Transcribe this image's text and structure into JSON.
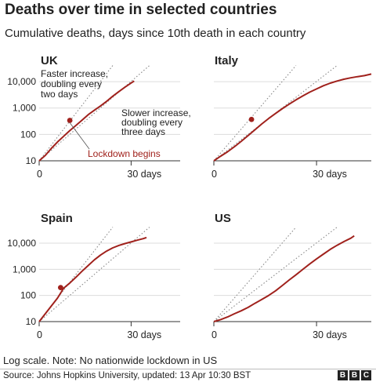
{
  "title": "Deaths over time in selected countries",
  "subtitle": "Cumulative deaths, days since 10th death in each country",
  "note": "Log scale. Note: No nationwide lockdown in US",
  "source": "Source: Johns Hopkins University, updated:  13 Apr 10:30 BST",
  "brand": [
    "B",
    "B",
    "C"
  ],
  "colors": {
    "line": "#a0211c",
    "guide": "#888888",
    "text": "#222222"
  },
  "chart_data": [
    {
      "type": "line",
      "title": "UK",
      "xlabel": "days",
      "ylabel": "",
      "log_scale_y": true,
      "xlim": [
        0,
        46
      ],
      "ylim": [
        10,
        20000
      ],
      "x_ticks": [
        0,
        30
      ],
      "x_tick_labels": [
        "0",
        "30 days"
      ],
      "y_ticks": [
        10,
        100,
        1000,
        10000
      ],
      "y_tick_labels": [
        "10",
        "100",
        "1,000",
        "10,000"
      ],
      "series": [
        {
          "x": [
            0,
            2,
            4,
            6,
            8,
            10,
            12,
            14,
            16,
            18,
            20,
            22,
            24,
            26,
            28,
            30,
            31
          ],
          "y": [
            10,
            16,
            30,
            52,
            85,
            140,
            220,
            350,
            560,
            820,
            1200,
            1800,
            2800,
            4200,
            6200,
            8900,
            10600
          ]
        }
      ],
      "guides": [
        {
          "x": [
            0,
            24
          ],
          "y": [
            10,
            40960
          ]
        },
        {
          "x": [
            0,
            36
          ],
          "y": [
            10,
            40960
          ]
        }
      ],
      "marker": {
        "x": 10,
        "y": 340
      },
      "annotations": [
        {
          "text": [
            "Faster increase,",
            "doubling every",
            "two days"
          ]
        },
        {
          "text": [
            "Slower increase,",
            "doubling every",
            "three days"
          ]
        },
        {
          "text": [
            "Lockdown begins"
          ]
        }
      ]
    },
    {
      "type": "line",
      "title": "Italy",
      "xlabel": "days",
      "ylabel": "",
      "log_scale_y": true,
      "xlim": [
        0,
        46
      ],
      "ylim": [
        10,
        20000
      ],
      "x_ticks": [
        0,
        30
      ],
      "x_tick_labels": [
        "0",
        "30 days"
      ],
      "y_ticks": [],
      "y_tick_labels": [],
      "series": [
        {
          "x": [
            0,
            2,
            4,
            6,
            8,
            10,
            12,
            14,
            16,
            18,
            20,
            22,
            24,
            26,
            28,
            30,
            32,
            34,
            36,
            38,
            40,
            42,
            44,
            46
          ],
          "y": [
            10,
            15,
            22,
            34,
            55,
            90,
            150,
            250,
            400,
            620,
            950,
            1400,
            2050,
            2900,
            4000,
            5300,
            7000,
            8800,
            10600,
            12400,
            14000,
            15500,
            17000,
            19500
          ]
        }
      ],
      "guides": [
        {
          "x": [
            0,
            24
          ],
          "y": [
            10,
            40960
          ]
        },
        {
          "x": [
            0,
            36
          ],
          "y": [
            10,
            40960
          ]
        }
      ],
      "marker": {
        "x": 11,
        "y": 370
      }
    },
    {
      "type": "line",
      "title": "Spain",
      "xlabel": "days",
      "ylabel": "",
      "log_scale_y": true,
      "xlim": [
        0,
        46
      ],
      "ylim": [
        10,
        20000
      ],
      "x_ticks": [
        0,
        30
      ],
      "x_tick_labels": [
        "0",
        "30 days"
      ],
      "y_ticks": [
        10,
        100,
        1000,
        10000
      ],
      "y_tick_labels": [
        "10",
        "100",
        "1,000",
        "10,000"
      ],
      "series": [
        {
          "x": [
            0,
            2,
            4,
            6,
            8,
            10,
            12,
            14,
            16,
            18,
            20,
            22,
            24,
            26,
            28,
            30,
            32,
            34,
            35
          ],
          "y": [
            10,
            20,
            40,
            80,
            190,
            300,
            500,
            850,
            1400,
            2300,
            3500,
            5000,
            6600,
            8200,
            9700,
            11200,
            13000,
            15000,
            16500
          ]
        }
      ],
      "guides": [
        {
          "x": [
            0,
            24
          ],
          "y": [
            10,
            40960
          ]
        },
        {
          "x": [
            0,
            36
          ],
          "y": [
            10,
            40960
          ]
        }
      ],
      "marker": {
        "x": 7,
        "y": 200
      }
    },
    {
      "type": "line",
      "title": "US",
      "xlabel": "days",
      "ylabel": "",
      "log_scale_y": true,
      "xlim": [
        0,
        46
      ],
      "ylim": [
        10,
        20000
      ],
      "x_ticks": [
        0,
        30
      ],
      "x_tick_labels": [
        "0",
        "30 days"
      ],
      "y_ticks": [],
      "y_tick_labels": [],
      "series": [
        {
          "x": [
            0,
            2,
            4,
            6,
            8,
            10,
            12,
            14,
            16,
            18,
            20,
            22,
            24,
            26,
            28,
            30,
            32,
            34,
            36,
            38,
            40,
            41
          ],
          "y": [
            10,
            12,
            15,
            20,
            26,
            35,
            50,
            70,
            100,
            150,
            240,
            390,
            620,
            1000,
            1600,
            2500,
            3800,
            5800,
            8300,
            11500,
            15500,
            19000
          ]
        }
      ],
      "guides": [
        {
          "x": [
            0,
            24
          ],
          "y": [
            10,
            40960
          ]
        },
        {
          "x": [
            0,
            36
          ],
          "y": [
            10,
            40960
          ]
        }
      ]
    }
  ]
}
